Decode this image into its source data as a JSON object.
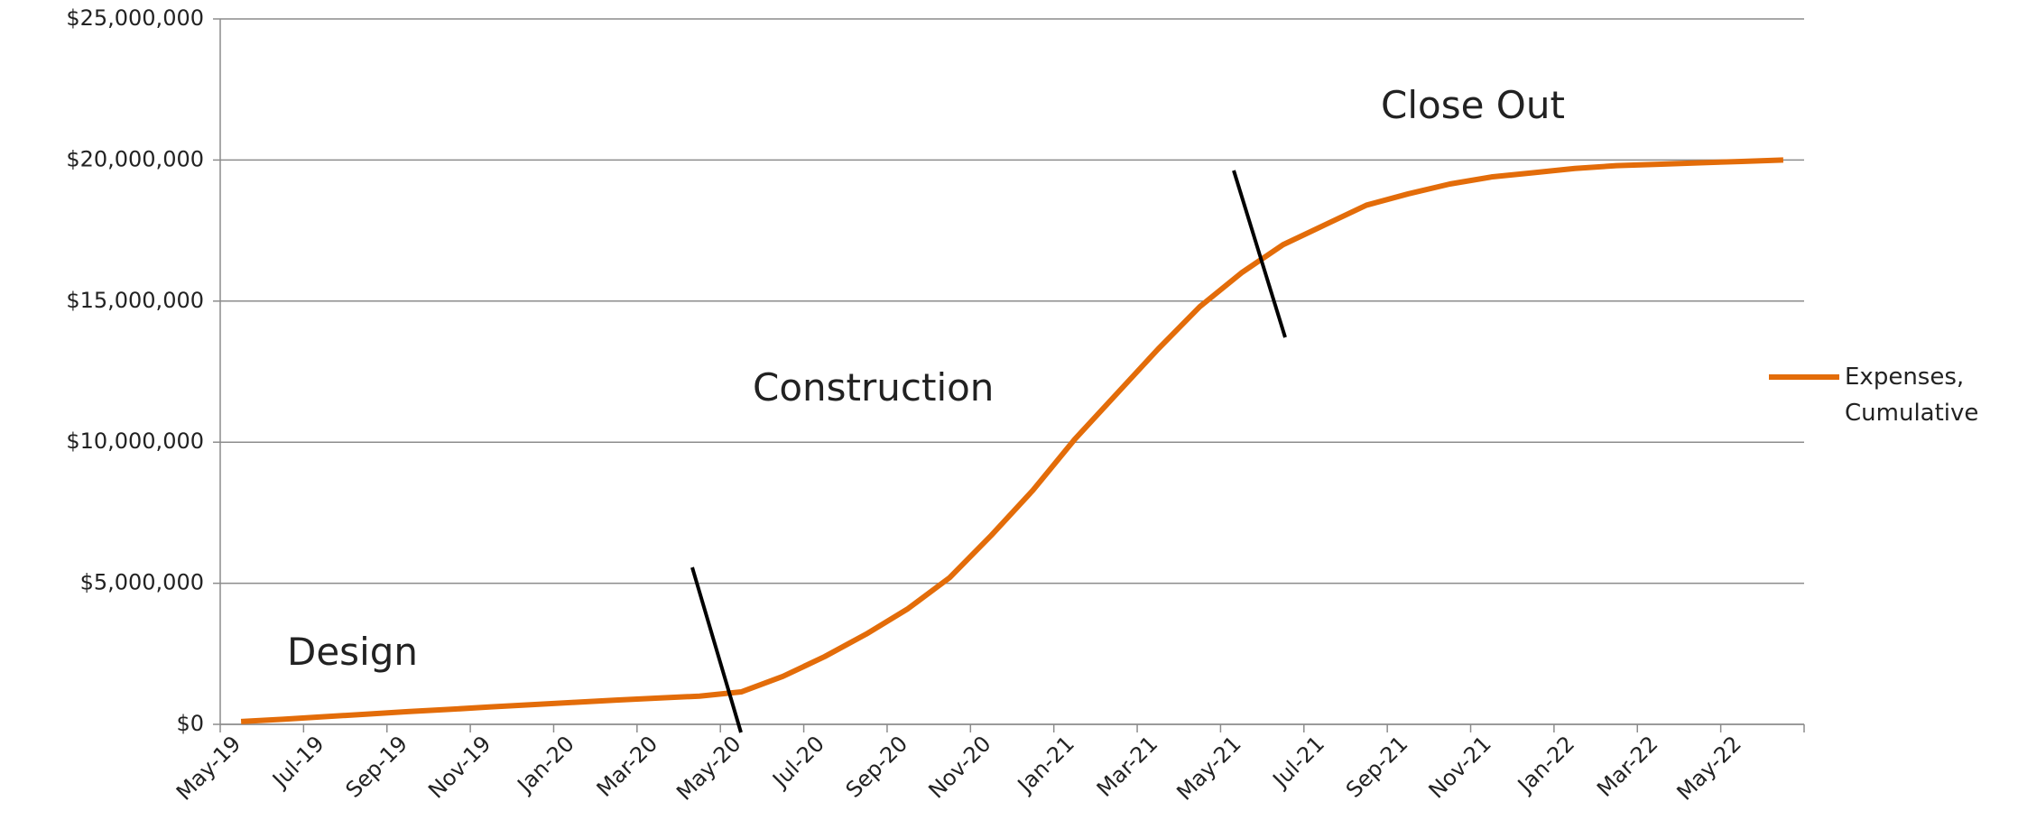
{
  "chart_data": {
    "type": "line",
    "categories": [
      "May-19",
      null,
      "Jul-19",
      null,
      "Sep-19",
      null,
      "Nov-19",
      null,
      "Jan-20",
      null,
      "Mar-20",
      null,
      "May-20",
      null,
      "Jul-20",
      null,
      "Sep-20",
      null,
      "Nov-20",
      null,
      "Jan-21",
      null,
      "Mar-21",
      null,
      "May-21",
      null,
      "Jul-21",
      null,
      "Sep-21",
      null,
      "Nov-21",
      null,
      "Jan-22",
      null,
      "Mar-22",
      null,
      "May-22",
      null
    ],
    "series": [
      {
        "name": "Expenses, Cumulative",
        "color": "#e36c09",
        "values": [
          100000,
          180000,
          270000,
          360000,
          450000,
          530000,
          620000,
          700000,
          780000,
          860000,
          930000,
          1000000,
          1150000,
          1700000,
          2400000,
          3200000,
          4100000,
          5200000,
          6700000,
          8300000,
          10100000,
          11700000,
          13300000,
          14800000,
          16000000,
          17000000,
          17700000,
          18400000,
          18800000,
          19150000,
          19400000,
          19550000,
          19700000,
          19800000,
          19850000,
          19900000,
          19950000,
          20000000
        ]
      }
    ],
    "ylim": [
      0,
      25000000
    ],
    "yticks": [
      {
        "value": 0,
        "label": "$0"
      },
      {
        "value": 5000000,
        "label": "$5,000,000"
      },
      {
        "value": 10000000,
        "label": "$10,000,000"
      },
      {
        "value": 15000000,
        "label": "$15,000,000"
      },
      {
        "value": 20000000,
        "label": "$20,000,000"
      },
      {
        "value": 25000000,
        "label": "$25,000,000"
      }
    ],
    "grid": true,
    "legend": "right",
    "annotations": [
      "Design",
      "Construction",
      "Close Out"
    ]
  }
}
